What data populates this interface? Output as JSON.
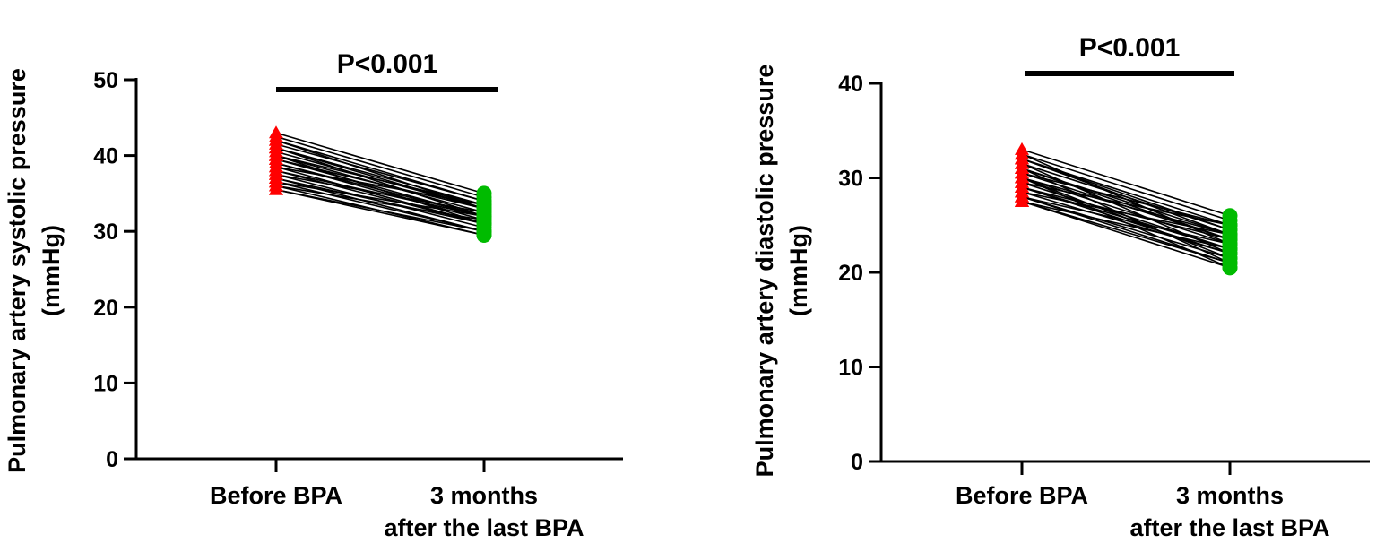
{
  "chart_data": [
    {
      "type": "line",
      "ylabel_line1": "Pulmonary artery systolic pressure",
      "ylabel_line2": "(mmHg)",
      "categories": [
        {
          "line1": "Before BPA",
          "line2": ""
        },
        {
          "line1": "3 months",
          "line2": "after the last BPA"
        }
      ],
      "ylim": [
        0,
        50
      ],
      "yticks": [
        0,
        10,
        20,
        30,
        40,
        50
      ],
      "annotation": "P<0.001",
      "before_color": "#ff0000",
      "after_color": "#00bb00",
      "line_color": "#000000",
      "pairs": [
        [
          43,
          35
        ],
        [
          42.5,
          34.5
        ],
        [
          42,
          34
        ],
        [
          41.5,
          34
        ],
        [
          41,
          33.5
        ],
        [
          41,
          33
        ],
        [
          40.5,
          33
        ],
        [
          40,
          32.5
        ],
        [
          40,
          33.5
        ],
        [
          39.5,
          32
        ],
        [
          39,
          32
        ],
        [
          39,
          31.5
        ],
        [
          38.5,
          31
        ],
        [
          38,
          32
        ],
        [
          38,
          31
        ],
        [
          37.5,
          30.5
        ],
        [
          37,
          30
        ],
        [
          37,
          31
        ],
        [
          36.5,
          30
        ],
        [
          36,
          29.5
        ],
        [
          36,
          31.5
        ],
        [
          35.5,
          30
        ],
        [
          35.5,
          29.5
        ],
        [
          39.5,
          33
        ],
        [
          41,
          32
        ],
        [
          37.5,
          32.5
        ],
        [
          40,
          31
        ],
        [
          38.5,
          33.5
        ],
        [
          36.5,
          32
        ],
        [
          42,
          33
        ]
      ]
    },
    {
      "type": "line",
      "ylabel_line1": "Pulmonary artery diastolic pressure",
      "ylabel_line2": "(mmHg)",
      "categories": [
        {
          "line1": "Before BPA",
          "line2": ""
        },
        {
          "line1": "3 months",
          "line2": "after the last BPA"
        }
      ],
      "ylim": [
        0,
        40
      ],
      "yticks": [
        0,
        10,
        20,
        30,
        40
      ],
      "annotation": "P<0.001",
      "before_color": "#ff0000",
      "after_color": "#00bb00",
      "line_color": "#000000",
      "pairs": [
        [
          33,
          26
        ],
        [
          32.5,
          25.5
        ],
        [
          32,
          25
        ],
        [
          32,
          24.5
        ],
        [
          31.5,
          24.5
        ],
        [
          31,
          24
        ],
        [
          31,
          23.5
        ],
        [
          30.5,
          23.5
        ],
        [
          30,
          23
        ],
        [
          30,
          24
        ],
        [
          29.5,
          22.5
        ],
        [
          29,
          22.5
        ],
        [
          29,
          22
        ],
        [
          28.5,
          22
        ],
        [
          28,
          21.5
        ],
        [
          28,
          21
        ],
        [
          27.5,
          21
        ],
        [
          27.5,
          20.5
        ],
        [
          30.5,
          25
        ],
        [
          29,
          23.5
        ],
        [
          31.5,
          22
        ],
        [
          28.5,
          24
        ],
        [
          30,
          21.5
        ],
        [
          32.5,
          23
        ],
        [
          27.5,
          22.5
        ],
        [
          29.5,
          25
        ],
        [
          31,
          21
        ],
        [
          28,
          23
        ],
        [
          30,
          20.5
        ],
        [
          32,
          24
        ]
      ]
    }
  ]
}
